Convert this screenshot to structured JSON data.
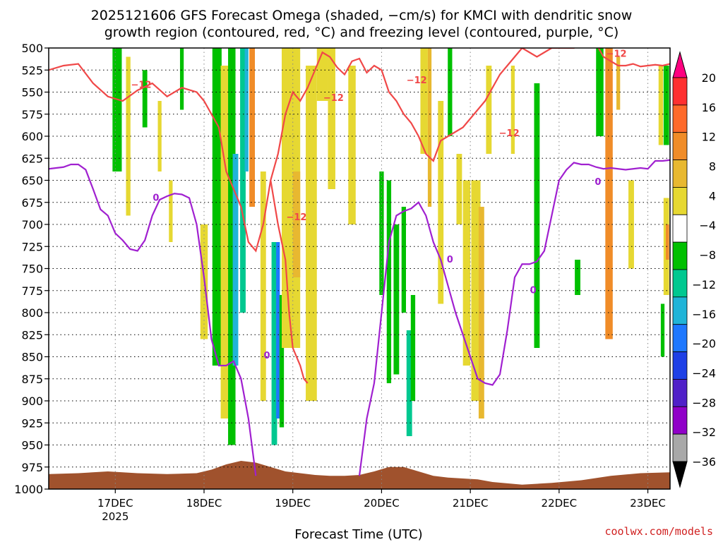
{
  "title_line1": "2025121606 GFS Forecast Omega (shaded, −cm/s) for KMCI with dendritic snow",
  "title_line2": "growth region (contoured, red, °C) and freezing level (contoured, purple, °C)",
  "credit": "coolwx.com/models",
  "chart_data": {
    "type": "time-height cross section",
    "xlabel": "Forecast Time (UTC)",
    "x_range_hours": [
      0,
      168
    ],
    "x_ticks": [
      {
        "hour": 18,
        "label": "17DEC",
        "sublabel": "2025"
      },
      {
        "hour": 42,
        "label": "18DEC",
        "sublabel": ""
      },
      {
        "hour": 66,
        "label": "19DEC",
        "sublabel": ""
      },
      {
        "hour": 90,
        "label": "20DEC",
        "sublabel": ""
      },
      {
        "hour": 114,
        "label": "21DEC",
        "sublabel": ""
      },
      {
        "hour": 138,
        "label": "22DEC",
        "sublabel": ""
      },
      {
        "hour": 162,
        "label": "23DEC",
        "sublabel": ""
      }
    ],
    "y_range_hPa": [
      1000,
      500
    ],
    "y_ticks": [
      500,
      525,
      550,
      575,
      600,
      625,
      650,
      675,
      700,
      725,
      750,
      775,
      800,
      825,
      850,
      875,
      900,
      925,
      950,
      975,
      1000
    ],
    "y_grid": "dotted",
    "colorbar": {
      "ticks": [
        "20",
        "16",
        "12",
        "8",
        "4",
        "−4",
        "−8",
        "−12",
        "−16",
        "−20",
        "−24",
        "−28",
        "−32",
        "−36"
      ],
      "colors": [
        "#ff0080",
        "#ff3030",
        "#ff6a2a",
        "#f08c28",
        "#e8b830",
        "#e6d832",
        "#ffffff",
        "#00c000",
        "#00c890",
        "#20b4d8",
        "#1e78ff",
        "#1e40e6",
        "#5020c8",
        "#9000c8",
        "#a8a8a8",
        "#000000"
      ]
    },
    "terrain_color": "#a0522d",
    "freezing_level_color": "#a020d0",
    "dgz_color": "#f04848",
    "freezing_level": {
      "label": "0",
      "hours": [
        0,
        4,
        6,
        8,
        10,
        12,
        14,
        16,
        18,
        20,
        22,
        24,
        26,
        28,
        30,
        32,
        34,
        36,
        38,
        40,
        42,
        44,
        46,
        48,
        50,
        52,
        54,
        56
      ],
      "pressure": [
        637,
        635,
        632,
        632,
        638,
        660,
        683,
        690,
        710,
        718,
        728,
        730,
        718,
        690,
        672,
        668,
        665,
        666,
        670,
        700,
        760,
        830,
        860,
        860,
        855,
        875,
        920,
        985
      ]
    },
    "freezing_level_2": {
      "hours": [
        84,
        86,
        88,
        90,
        92,
        94,
        96,
        98,
        100,
        102,
        104,
        106,
        108,
        110,
        112,
        114,
        116,
        118,
        120,
        122,
        124,
        126,
        128,
        130,
        132,
        134,
        136,
        138,
        140,
        142,
        144,
        146,
        148,
        150,
        152,
        154,
        156,
        158,
        160,
        162,
        164,
        166,
        168
      ],
      "pressure": [
        985,
        920,
        880,
        800,
        720,
        690,
        685,
        682,
        675,
        690,
        720,
        740,
        770,
        800,
        825,
        850,
        875,
        880,
        882,
        870,
        820,
        760,
        745,
        745,
        742,
        730,
        690,
        650,
        638,
        630,
        632,
        632,
        635,
        637,
        636,
        637,
        638,
        637,
        636,
        637,
        628,
        628,
        627
      ]
    },
    "dgz_minus12": {
      "label": "−12",
      "hours": [
        0,
        4,
        8,
        12,
        16,
        20,
        24,
        28,
        32,
        36,
        40,
        42,
        44,
        46,
        48,
        50,
        52,
        54,
        56,
        58,
        60,
        62,
        64,
        66,
        68,
        70,
        72,
        74,
        76,
        78,
        80,
        82,
        84,
        86,
        88,
        90,
        92,
        94,
        96,
        98,
        100,
        102,
        104,
        106,
        108,
        110,
        112,
        114,
        116,
        118,
        120,
        122,
        124,
        126,
        128,
        130,
        132,
        134,
        136,
        138,
        140,
        142,
        144,
        146,
        148,
        150,
        152,
        154,
        156,
        158,
        160,
        162,
        164,
        166,
        168
      ],
      "pressure": [
        525,
        520,
        518,
        540,
        555,
        560,
        548,
        540,
        555,
        545,
        550,
        560,
        575,
        590,
        640,
        660,
        680,
        720,
        730,
        700,
        650,
        620,
        575,
        550,
        560,
        545,
        525,
        505,
        510,
        522,
        530,
        515,
        512,
        528,
        520,
        525,
        550,
        560,
        575,
        585,
        600,
        620,
        628,
        605,
        600,
        595,
        590,
        580,
        570,
        560,
        545,
        530,
        520,
        510,
        500,
        505,
        510,
        505,
        500,
        500,
        500,
        500,
        495,
        490,
        495,
        510,
        515,
        520,
        520,
        518,
        521,
        520,
        519,
        520,
        518
      ]
    },
    "dgz_minus12_lower": {
      "hours": [
        60,
        62,
        64,
        65,
        66,
        67,
        68,
        69,
        70
      ],
      "pressure": [
        650,
        700,
        740,
        800,
        840,
        850,
        860,
        875,
        880
      ]
    },
    "terrain_top_pressure": {
      "hours": [
        0,
        8,
        16,
        24,
        32,
        40,
        44,
        48,
        52,
        56,
        60,
        64,
        68,
        72,
        76,
        80,
        84,
        88,
        92,
        96,
        100,
        104,
        108,
        112,
        116,
        120,
        128,
        136,
        144,
        152,
        160,
        168
      ],
      "pressure": [
        983,
        982,
        980,
        982,
        983,
        982,
        978,
        972,
        968,
        970,
        975,
        980,
        982,
        984,
        985,
        985,
        984,
        980,
        975,
        975,
        980,
        985,
        987,
        988,
        989,
        992,
        995,
        993,
        990,
        985,
        982,
        981
      ]
    },
    "omega_bands": [
      {
        "hour": 18.5,
        "width": 2.5,
        "top": 500,
        "bottom": 640,
        "color": "#00c000"
      },
      {
        "hour": 21.5,
        "width": 1.2,
        "top": 510,
        "bottom": 690,
        "color": "#e6d832"
      },
      {
        "hour": 26,
        "width": 1.3,
        "top": 525,
        "bottom": 590,
        "color": "#00c000"
      },
      {
        "hour": 30,
        "width": 1.0,
        "top": 560,
        "bottom": 640,
        "color": "#e6d832"
      },
      {
        "hour": 33,
        "width": 1.0,
        "top": 650,
        "bottom": 720,
        "color": "#e6d832"
      },
      {
        "hour": 36,
        "width": 1.0,
        "top": 500,
        "bottom": 570,
        "color": "#00c000"
      },
      {
        "hour": 42,
        "width": 2.0,
        "top": 700,
        "bottom": 830,
        "color": "#e6d832"
      },
      {
        "hour": 45.5,
        "width": 2.5,
        "top": 500,
        "bottom": 860,
        "color": "#00c000"
      },
      {
        "hour": 47.5,
        "width": 2.0,
        "top": 520,
        "bottom": 920,
        "color": "#e6d832"
      },
      {
        "hour": 49.5,
        "width": 2.0,
        "top": 500,
        "bottom": 950,
        "color": "#00c000"
      },
      {
        "hour": 50.5,
        "width": 1.5,
        "top": 620,
        "bottom": 860,
        "color": "#20b4d8"
      },
      {
        "hour": 52.5,
        "width": 1.5,
        "top": 500,
        "bottom": 800,
        "color": "#00c890"
      },
      {
        "hour": 53.5,
        "width": 1.0,
        "top": 500,
        "bottom": 640,
        "color": "#20b4d8"
      },
      {
        "hour": 55,
        "width": 1.5,
        "top": 500,
        "bottom": 680,
        "color": "#f08c28"
      },
      {
        "hour": 58,
        "width": 1.5,
        "top": 640,
        "bottom": 900,
        "color": "#e6d832"
      },
      {
        "hour": 61,
        "width": 1.5,
        "top": 720,
        "bottom": 950,
        "color": "#00c890"
      },
      {
        "hour": 62,
        "width": 1.0,
        "top": 720,
        "bottom": 920,
        "color": "#1e78ff"
      },
      {
        "hour": 63,
        "width": 1.2,
        "top": 780,
        "bottom": 930,
        "color": "#00c000"
      },
      {
        "hour": 65.5,
        "width": 5.0,
        "top": 500,
        "bottom": 840,
        "color": "#e6d832"
      },
      {
        "hour": 67,
        "width": 2.0,
        "top": 640,
        "bottom": 760,
        "color": "#e8b830"
      },
      {
        "hour": 71,
        "width": 3.0,
        "top": 520,
        "bottom": 900,
        "color": "#e6d832"
      },
      {
        "hour": 74,
        "width": 3.0,
        "top": 500,
        "bottom": 560,
        "color": "#e6d832"
      },
      {
        "hour": 76.5,
        "width": 2.0,
        "top": 500,
        "bottom": 660,
        "color": "#e6d832"
      },
      {
        "hour": 82,
        "width": 2.0,
        "top": 520,
        "bottom": 700,
        "color": "#e6d832"
      },
      {
        "hour": 90,
        "width": 1.2,
        "top": 640,
        "bottom": 780,
        "color": "#00c000"
      },
      {
        "hour": 92,
        "width": 1.2,
        "top": 650,
        "bottom": 880,
        "color": "#00c000"
      },
      {
        "hour": 94,
        "width": 1.5,
        "top": 700,
        "bottom": 870,
        "color": "#00c000"
      },
      {
        "hour": 96,
        "width": 1.2,
        "top": 680,
        "bottom": 800,
        "color": "#00c000"
      },
      {
        "hour": 97.5,
        "width": 1.5,
        "top": 820,
        "bottom": 940,
        "color": "#00c890"
      },
      {
        "hour": 98.5,
        "width": 1.2,
        "top": 780,
        "bottom": 900,
        "color": "#00c000"
      },
      {
        "hour": 101.5,
        "width": 2.0,
        "top": 500,
        "bottom": 620,
        "color": "#e6d832"
      },
      {
        "hour": 103,
        "width": 1.0,
        "top": 500,
        "bottom": 680,
        "color": "#e8b830"
      },
      {
        "hour": 106,
        "width": 1.5,
        "top": 560,
        "bottom": 790,
        "color": "#e6d832"
      },
      {
        "hour": 108.5,
        "width": 1.2,
        "top": 500,
        "bottom": 600,
        "color": "#00c000"
      },
      {
        "hour": 111,
        "width": 1.5,
        "top": 620,
        "bottom": 700,
        "color": "#e6d832"
      },
      {
        "hour": 113,
        "width": 2.0,
        "top": 650,
        "bottom": 860,
        "color": "#e6d832"
      },
      {
        "hour": 115.5,
        "width": 2.5,
        "top": 650,
        "bottom": 900,
        "color": "#e6d832"
      },
      {
        "hour": 117,
        "width": 1.5,
        "top": 680,
        "bottom": 920,
        "color": "#e8b830"
      },
      {
        "hour": 119,
        "width": 1.5,
        "top": 520,
        "bottom": 620,
        "color": "#e6d832"
      },
      {
        "hour": 125.5,
        "width": 1.0,
        "top": 520,
        "bottom": 620,
        "color": "#e6d832"
      },
      {
        "hour": 132,
        "width": 1.5,
        "top": 540,
        "bottom": 840,
        "color": "#00c000"
      },
      {
        "hour": 143,
        "width": 1.5,
        "top": 740,
        "bottom": 780,
        "color": "#00c000"
      },
      {
        "hour": 149,
        "width": 2.0,
        "top": 500,
        "bottom": 600,
        "color": "#00c000"
      },
      {
        "hour": 151.5,
        "width": 2.0,
        "top": 500,
        "bottom": 830,
        "color": "#f08c28"
      },
      {
        "hour": 154,
        "width": 1.0,
        "top": 510,
        "bottom": 570,
        "color": "#e8b830"
      },
      {
        "hour": 157.5,
        "width": 1.5,
        "top": 650,
        "bottom": 750,
        "color": "#e6d832"
      },
      {
        "hour": 165.5,
        "width": 1.2,
        "top": 520,
        "bottom": 610,
        "color": "#e6d832"
      },
      {
        "hour": 166,
        "width": 1.0,
        "top": 790,
        "bottom": 850,
        "color": "#00c000"
      },
      {
        "hour": 167,
        "width": 1.5,
        "top": 520,
        "bottom": 610,
        "color": "#00c000"
      },
      {
        "hour": 167,
        "width": 1.5,
        "top": 670,
        "bottom": 780,
        "color": "#e6d832"
      },
      {
        "hour": 167.3,
        "width": 0.9,
        "top": 700,
        "bottom": 740,
        "color": "#f08c28"
      }
    ]
  }
}
